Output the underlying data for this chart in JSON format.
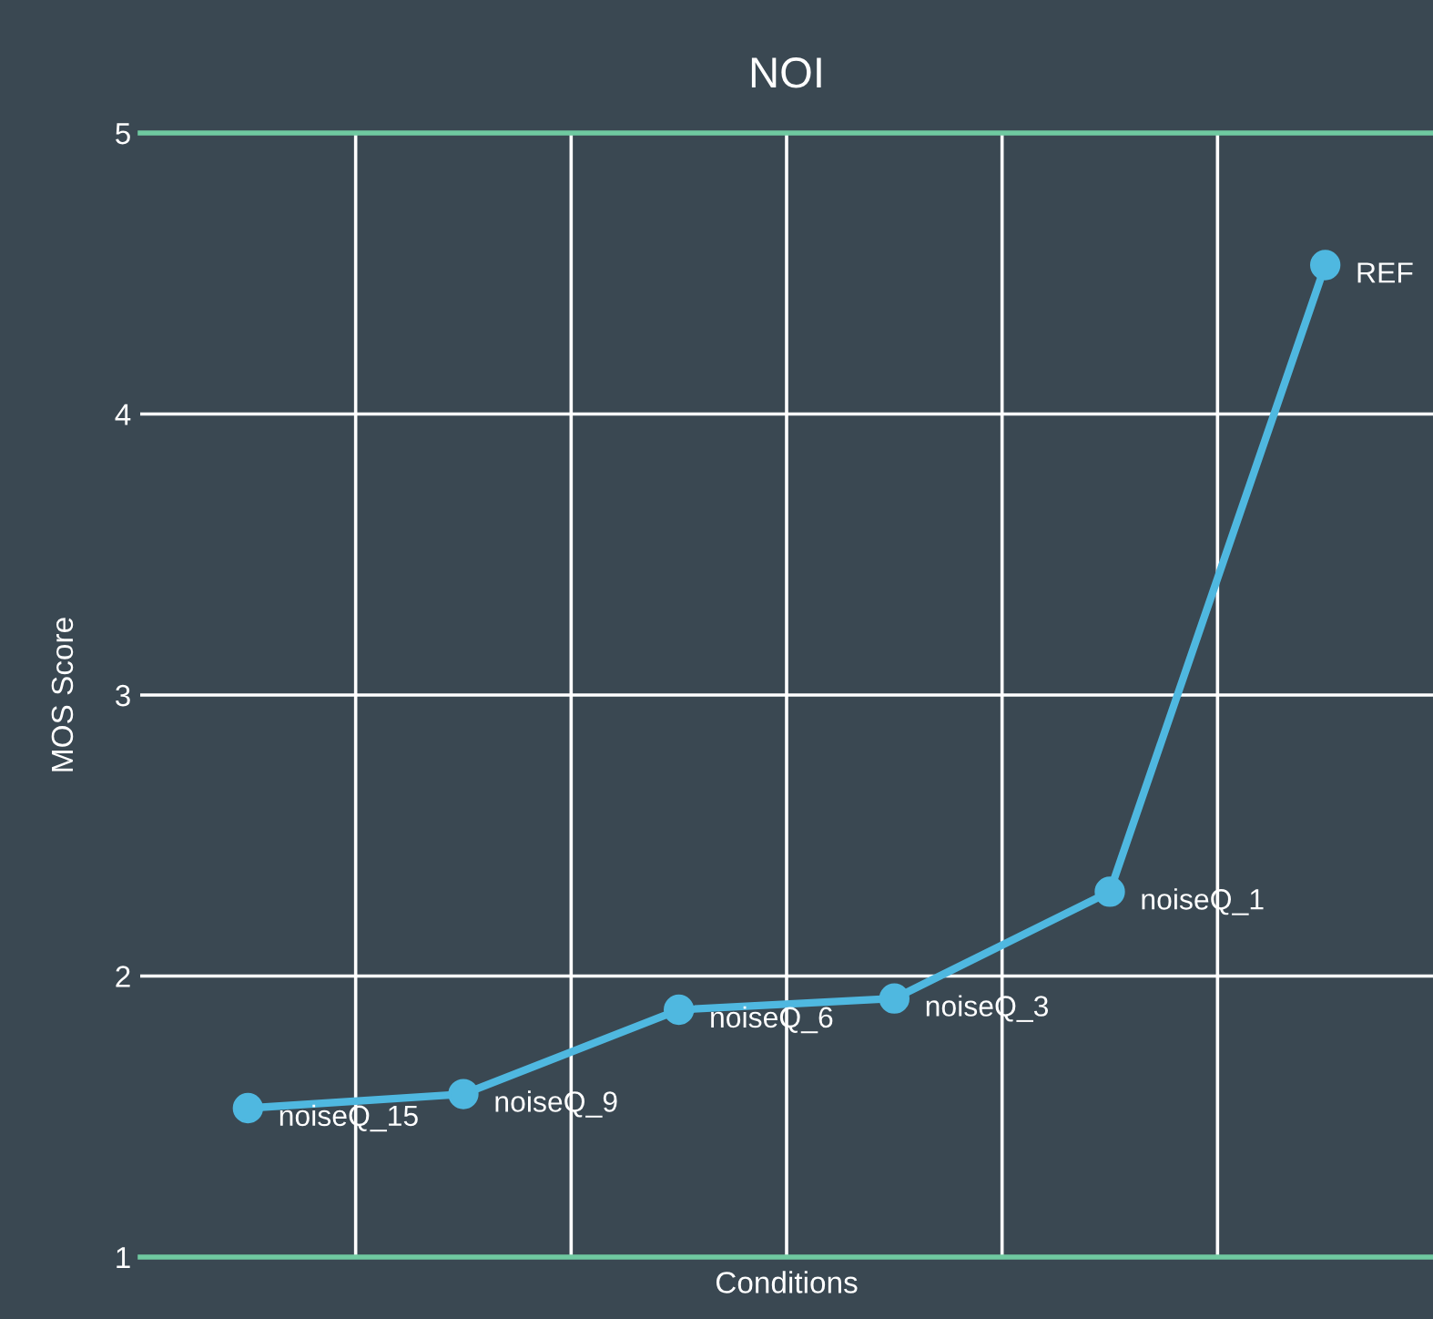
{
  "chart_data": {
    "type": "line",
    "title": "NOI",
    "xlabel": "Conditions",
    "ylabel": "MOS Score",
    "categories": [
      null,
      null,
      null,
      null,
      null,
      null
    ],
    "series": [
      {
        "color": "#4fb8e0",
        "values": [
          1.53,
          1.58,
          1.88,
          1.92,
          2.3,
          4.53
        ]
      }
    ],
    "ylim": [
      1,
      5
    ],
    "yticks": [
      1,
      2,
      3,
      4,
      5
    ],
    "grid": true,
    "marker": "circle",
    "line_style": "solid",
    "annotations": [
      "noiseQ_15",
      "noiseQ_9",
      "noiseQ_6",
      "noiseQ_3",
      "noiseQ_1",
      "REF"
    ]
  }
}
